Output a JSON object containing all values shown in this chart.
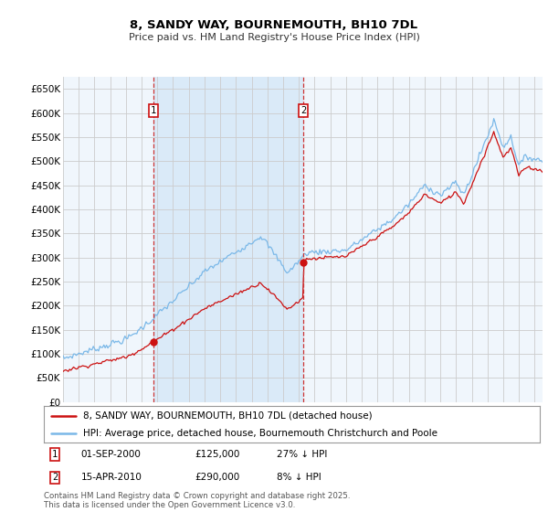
{
  "title": "8, SANDY WAY, BOURNEMOUTH, BH10 7DL",
  "subtitle": "Price paid vs. HM Land Registry's House Price Index (HPI)",
  "legend_line1": "8, SANDY WAY, BOURNEMOUTH, BH10 7DL (detached house)",
  "legend_line2": "HPI: Average price, detached house, Bournemouth Christchurch and Poole",
  "annotation1_label": "1",
  "annotation1_date": "01-SEP-2000",
  "annotation1_price": "£125,000",
  "annotation1_hpi": "27% ↓ HPI",
  "annotation2_label": "2",
  "annotation2_date": "15-APR-2010",
  "annotation2_price": "£290,000",
  "annotation2_hpi": "8% ↓ HPI",
  "footer": "Contains HM Land Registry data © Crown copyright and database right 2025.\nThis data is licensed under the Open Government Licence v3.0.",
  "sale1_year": 2000.75,
  "sale1_value": 125000,
  "sale2_year": 2010.29,
  "sale2_value": 290000,
  "hpi_color": "#7ab8e8",
  "sale_color": "#cc1111",
  "grid_color": "#cccccc",
  "background_chart": "#f0f6fc",
  "background_between": "#daeaf8",
  "background_fig": "#ffffff",
  "vline_color": "#cc3333",
  "annotation_box_color": "#cc1111",
  "ylim": [
    0,
    675000
  ],
  "xlim_start": 1995,
  "xlim_end": 2025.5,
  "yticks": [
    0,
    50000,
    100000,
    150000,
    200000,
    250000,
    300000,
    350000,
    400000,
    450000,
    500000,
    550000,
    600000,
    650000
  ],
  "ytick_labels": [
    "£0",
    "£50K",
    "£100K",
    "£150K",
    "£200K",
    "£250K",
    "£300K",
    "£350K",
    "£400K",
    "£450K",
    "£500K",
    "£550K",
    "£600K",
    "£650K"
  ],
  "xticks": [
    1995,
    1996,
    1997,
    1998,
    1999,
    2000,
    2001,
    2002,
    2003,
    2004,
    2005,
    2006,
    2007,
    2008,
    2009,
    2010,
    2011,
    2012,
    2013,
    2014,
    2015,
    2016,
    2017,
    2018,
    2019,
    2020,
    2021,
    2022,
    2023,
    2024,
    2025
  ]
}
